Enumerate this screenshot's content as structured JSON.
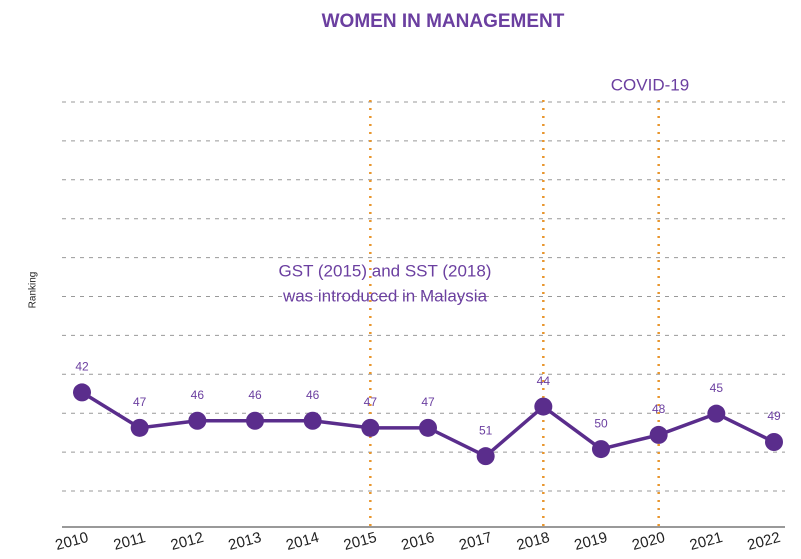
{
  "chart_data": {
    "type": "line",
    "title": "WOMEN IN MANAGEMENT",
    "ylabel": "Ranking",
    "categories": [
      "2010",
      "2011",
      "2012",
      "2013",
      "2014",
      "2015",
      "2016",
      "2017",
      "2018",
      "2019",
      "2020",
      "2021",
      "2022"
    ],
    "series": [
      {
        "name": "Ranking",
        "color": "#5a2d8c",
        "values": [
          42,
          47,
          46,
          46,
          46,
          47,
          47,
          51,
          44,
          50,
          48,
          45,
          49
        ]
      }
    ],
    "ylim": [
      61,
      1
    ],
    "grid": true,
    "vlines": [
      "2015",
      "2018",
      "2020"
    ],
    "vline_color": "#e8962e",
    "annotations": [
      {
        "text": "COVID-19",
        "at": "2020"
      },
      {
        "text": "GST (2015) and SST (2018)",
        "at": "2015"
      },
      {
        "text": "was introduced in Malaysia",
        "at": "2015"
      }
    ]
  }
}
